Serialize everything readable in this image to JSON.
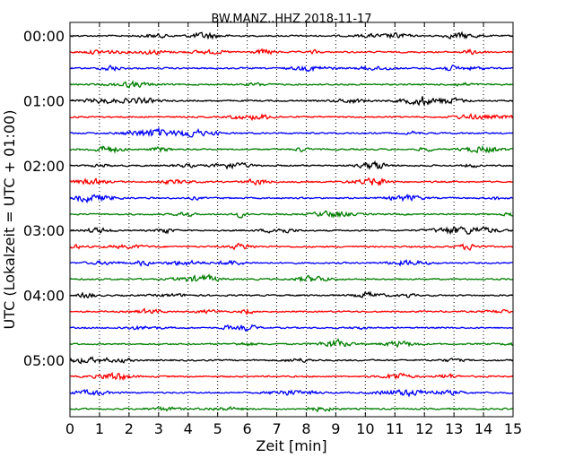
{
  "chart_data": {
    "type": "line",
    "title": "BW.MANZ..HHZ 2018-11-17",
    "xlabel": "Zeit  [min]",
    "ylabel": "UTC (Lokalzeit = UTC + 01:00)",
    "xlim": [
      0,
      15
    ],
    "x_ticks": [
      "0",
      "1",
      "2",
      "3",
      "4",
      "5",
      "6",
      "7",
      "8",
      "9",
      "10",
      "11",
      "12",
      "13",
      "14",
      "15"
    ],
    "y_tick_labels": [
      "00:00",
      "01:00",
      "02:00",
      "03:00",
      "04:00",
      "05:00"
    ],
    "row_minutes": 15,
    "grid": "vertical dotted",
    "trace_colors": [
      "#000000",
      "#ff0000",
      "#0000ff",
      "#007f00"
    ],
    "trace_starts": [
      "00:00",
      "00:15",
      "00:30",
      "00:45",
      "01:00",
      "01:15",
      "01:30",
      "01:45",
      "02:00",
      "02:15",
      "02:30",
      "02:45",
      "03:00",
      "03:15",
      "03:30",
      "03:45",
      "04:00",
      "04:15",
      "04:30",
      "04:45",
      "05:00",
      "05:15",
      "05:30",
      "05:45"
    ]
  }
}
